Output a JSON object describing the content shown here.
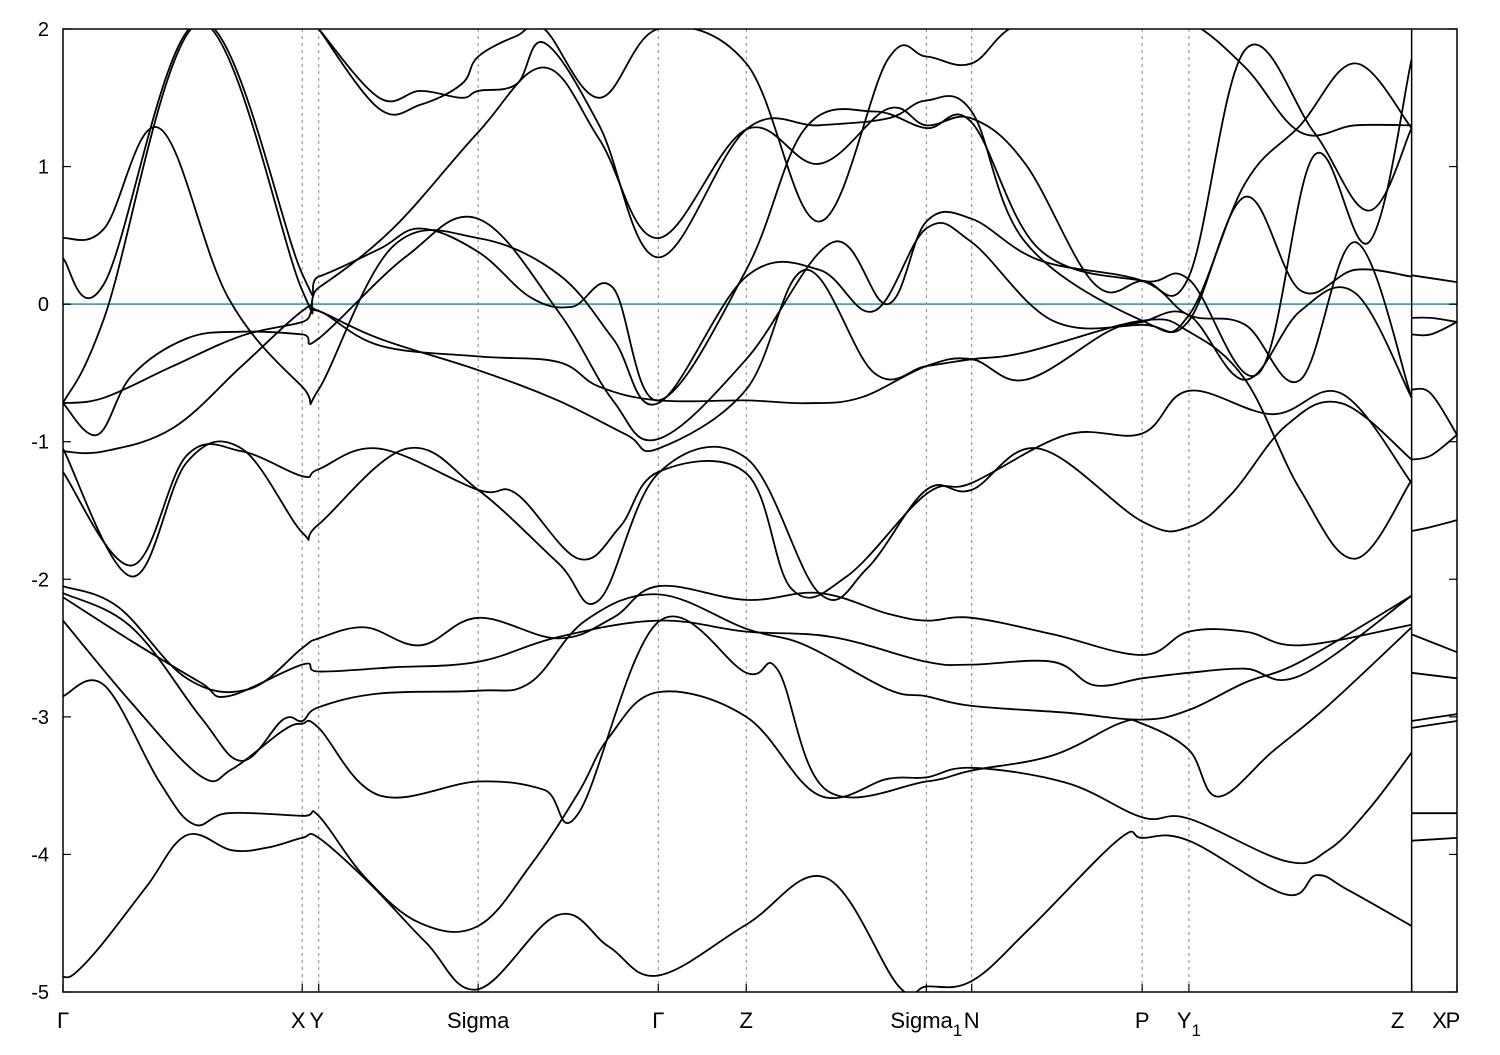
{
  "chart_data": {
    "type": "line",
    "title": "",
    "xlabel": "",
    "ylabel": "",
    "ylim": [
      -5,
      2
    ],
    "yticks": [
      2,
      1,
      0,
      -1,
      -2,
      -3,
      -4,
      -5
    ],
    "ytick_labels": [
      "2",
      "1",
      "0",
      "-1",
      "-2",
      "-3",
      "-4",
      "-5"
    ],
    "fermi_level": 0,
    "grid": false,
    "colors": {
      "bands": "#000000",
      "fermi_line": "#3aa6bf",
      "k_lines": "#888888"
    },
    "kpoints": [
      {
        "label": "Γ",
        "sub": "",
        "x": 0.0
      },
      {
        "label": "X",
        "sub": "",
        "x": 1.74
      },
      {
        "label": "Y",
        "sub": "",
        "x": 1.86
      },
      {
        "label": "Sigma",
        "sub": "",
        "x": 3.02
      },
      {
        "label": "Γ",
        "sub": "",
        "x": 4.33
      },
      {
        "label": "Z",
        "sub": "",
        "x": 4.97
      },
      {
        "label": "Sigma",
        "sub": "1",
        "x": 6.28
      },
      {
        "label": "N",
        "sub": "",
        "x": 6.61
      },
      {
        "label": "P",
        "sub": "",
        "x": 7.85
      },
      {
        "label": "Y",
        "sub": "1",
        "x": 8.19
      },
      {
        "label": "Z",
        "sub": "",
        "x": 9.81
      },
      {
        "label": "X",
        "sub": "",
        "x": 9.81
      },
      {
        "label": "P",
        "sub": "",
        "x": 10.14
      }
    ],
    "xlim": [
      0,
      10.14
    ],
    "series": [
      {
        "x": [
          0,
          0.08,
          0.27,
          0.61,
          0.9,
          1.23,
          1.49,
          1.74,
          1.86,
          2.23,
          2.64,
          3.02,
          3.6,
          3.97,
          4.33,
          4.97,
          5.55,
          6.08,
          6.28,
          6.61,
          7.03,
          7.68,
          7.85,
          8.19,
          8.89,
          9.12,
          9.35,
          9.81
        ],
        "y": [
          -4.89,
          -4.87,
          -4.67,
          -4.23,
          -3.86,
          -3.97,
          -3.95,
          -3.88,
          -3.88,
          -4.21,
          -4.64,
          -4.98,
          -4.44,
          -4.67,
          -4.88,
          -4.51,
          -4.17,
          -4.96,
          -4.96,
          -4.92,
          -4.54,
          -3.89,
          -3.88,
          -3.9,
          -4.29,
          -4.15,
          -4.26,
          -4.52
        ]
      },
      {
        "x": [
          0,
          0.3,
          0.7,
          0.95,
          1.2,
          1.74,
          1.86,
          2.2,
          2.6,
          3.02,
          3.4,
          3.75,
          3.97,
          4.33,
          4.97,
          5.5,
          6.0,
          6.28,
          6.61,
          7.3,
          7.85,
          8.19,
          8.9,
          9.2,
          9.5,
          9.81
        ],
        "y": [
          -2.85,
          -2.77,
          -3.47,
          -3.78,
          -3.7,
          -3.72,
          -3.72,
          -4.17,
          -4.5,
          -4.52,
          -4.08,
          -3.55,
          -3.15,
          -2.82,
          -3.0,
          -3.57,
          -3.45,
          -3.44,
          -3.37,
          -3.48,
          -3.73,
          -3.74,
          -4.05,
          -3.97,
          -3.67,
          -3.26
        ]
      },
      {
        "x": [
          0,
          0.5,
          1.0,
          1.23,
          1.6,
          1.74,
          1.86,
          2.3,
          3.02,
          3.5,
          3.75,
          4.33,
          4.97,
          5.2,
          5.55,
          6.28,
          6.61,
          7.2,
          7.68,
          7.85,
          8.19,
          8.4,
          8.8,
          9.2,
          9.81
        ],
        "y": [
          -2.3,
          -2.9,
          -3.43,
          -3.38,
          -3.1,
          -3.05,
          -3.08,
          -3.57,
          -3.47,
          -3.53,
          -3.7,
          -2.31,
          -2.68,
          -2.66,
          -3.53,
          -3.47,
          -3.39,
          -3.28,
          -3.05,
          -3.05,
          -3.24,
          -3.58,
          -3.25,
          -2.92,
          -2.35
        ]
      },
      {
        "x": [
          0,
          0.5,
          1.0,
          1.3,
          1.6,
          1.74,
          1.86,
          2.3,
          3.02,
          3.4,
          3.8,
          4.33,
          4.97,
          5.4,
          6.0,
          6.28,
          6.61,
          7.3,
          7.85,
          8.19,
          8.6,
          9.0,
          9.81
        ],
        "y": [
          -2.1,
          -2.35,
          -3.0,
          -3.32,
          -3.02,
          -3.03,
          -2.93,
          -2.83,
          -2.81,
          -2.75,
          -2.3,
          -2.11,
          -2.36,
          -2.48,
          -2.8,
          -2.85,
          -2.92,
          -2.97,
          -3.02,
          -2.95,
          -2.75,
          -2.6,
          -2.12
        ]
      },
      {
        "x": [
          0,
          0.4,
          0.9,
          1.35,
          1.74,
          1.86,
          2.2,
          2.6,
          3.02,
          3.6,
          4.0,
          4.33,
          4.97,
          5.5,
          6.0,
          6.28,
          6.61,
          7.2,
          7.85,
          8.19,
          8.6,
          9.0,
          9.81
        ],
        "y": [
          -2.05,
          -2.2,
          -2.72,
          -2.8,
          -2.5,
          -2.43,
          -2.35,
          -2.48,
          -2.28,
          -2.43,
          -2.28,
          -2.05,
          -2.15,
          -2.1,
          -2.25,
          -2.3,
          -2.28,
          -2.4,
          -2.55,
          -2.38,
          -2.38,
          -2.48,
          -2.33
        ]
      },
      {
        "x": [
          0,
          0.5,
          1.0,
          1.2,
          1.74,
          1.86,
          2.4,
          3.02,
          3.6,
          4.33,
          4.97,
          5.6,
          6.28,
          6.61,
          7.2,
          7.5,
          7.85,
          8.19,
          8.6,
          9.0,
          9.81
        ],
        "y": [
          -2.13,
          -2.45,
          -2.75,
          -2.85,
          -2.62,
          -2.67,
          -2.64,
          -2.6,
          -2.42,
          -2.3,
          -2.38,
          -2.42,
          -2.6,
          -2.62,
          -2.6,
          -2.77,
          -2.72,
          -2.68,
          -2.65,
          -2.7,
          -2.12
        ]
      },
      {
        "x": [
          0,
          0.5,
          0.9,
          1.3,
          1.74,
          1.86,
          2.3,
          3.02,
          3.3,
          3.75,
          4.05,
          4.33,
          4.97,
          5.3,
          5.7,
          6.28,
          6.61,
          7.3,
          7.85,
          8.19,
          8.8,
          9.3,
          9.81
        ],
        "y": [
          -1.22,
          -1.9,
          -1.1,
          -1.07,
          -1.25,
          -1.2,
          -1.05,
          -1.35,
          -1.38,
          -1.85,
          -1.62,
          -1.22,
          -1.23,
          -2.07,
          -1.98,
          -1.38,
          -1.3,
          -0.95,
          -0.94,
          -0.63,
          -0.8,
          -0.65,
          -1.3
        ]
      },
      {
        "x": [
          0,
          0.5,
          0.9,
          1.3,
          1.74,
          1.86,
          2.5,
          3.02,
          3.6,
          3.9,
          4.33,
          4.97,
          5.5,
          5.85,
          6.28,
          6.61,
          7.1,
          7.85,
          8.19,
          8.5,
          8.9,
          9.3,
          9.81
        ],
        "y": [
          -1.05,
          -1.98,
          -1.15,
          -1.05,
          -1.66,
          -1.6,
          -1.05,
          -1.35,
          -1.88,
          -2.15,
          -1.23,
          -1.12,
          -2.1,
          -1.92,
          -1.35,
          -1.35,
          -1.05,
          -1.58,
          -1.62,
          -1.38,
          -0.88,
          -0.72,
          -1.13
        ]
      },
      {
        "x": [
          0,
          0.3,
          0.8,
          1.3,
          1.74,
          1.86,
          2.3,
          3.02,
          3.6,
          4.1,
          4.33,
          4.97,
          5.4,
          5.9,
          6.28,
          6.61,
          7.0,
          7.85,
          8.19,
          8.6,
          9.0,
          9.4,
          9.81
        ],
        "y": [
          -1.07,
          -1.07,
          -0.9,
          -0.45,
          -0.05,
          -0.05,
          -0.25,
          -0.48,
          -0.7,
          -0.95,
          -1.05,
          -0.62,
          0.25,
          -0.5,
          -0.45,
          -0.4,
          -0.35,
          -0.12,
          -0.2,
          -0.55,
          -1.35,
          -1.85,
          -1.28
        ]
      },
      {
        "x": [
          0,
          0.3,
          0.8,
          1.3,
          1.74,
          1.86,
          2.3,
          3.02,
          3.6,
          3.9,
          4.33,
          4.97,
          5.4,
          5.8,
          6.28,
          6.61,
          7.0,
          7.6,
          7.85,
          8.19,
          8.6,
          9.0,
          9.4,
          9.81
        ],
        "y": [
          -0.72,
          -0.68,
          -0.45,
          -0.23,
          -0.13,
          -0.05,
          -0.3,
          -0.38,
          -0.42,
          -0.6,
          -0.7,
          -0.7,
          -0.72,
          -0.68,
          -0.45,
          -0.4,
          -0.55,
          -0.2,
          -0.13,
          -0.08,
          -0.55,
          -0.05,
          0.08,
          -0.68
        ]
      },
      {
        "x": [
          0,
          0.25,
          0.5,
          0.9,
          1.3,
          1.74,
          1.86,
          2.5,
          3.02,
          3.6,
          4.0,
          4.33,
          4.97,
          5.6,
          6.0,
          6.28,
          6.61,
          7.1,
          7.85,
          8.19,
          8.6,
          9.0,
          9.4,
          9.81
        ],
        "y": [
          -0.72,
          -0.95,
          -0.52,
          -0.25,
          -0.2,
          -0.22,
          -0.25,
          0.35,
          0.62,
          -0.05,
          -0.7,
          -0.98,
          -0.4,
          0.45,
          0.0,
          0.6,
          0.62,
          0.32,
          0.17,
          -0.08,
          -0.15,
          -0.55,
          0.45,
          -0.68
        ]
      },
      {
        "x": [
          0,
          0.3,
          0.7,
          1.2,
          1.74,
          1.86,
          2.4,
          3.02,
          3.6,
          4.0,
          4.33,
          4.97,
          5.5,
          5.9,
          6.28,
          6.61,
          7.2,
          7.85,
          8.19,
          8.6,
          9.0,
          9.4,
          9.81
        ],
        "y": [
          0.48,
          0.55,
          1.28,
          0.05,
          -0.6,
          -0.62,
          0.42,
          0.48,
          0.22,
          -0.25,
          -0.72,
          0.2,
          0.25,
          -0.05,
          0.55,
          0.45,
          -0.12,
          -0.15,
          -0.12,
          0.78,
          0.1,
          0.25,
          0.2
        ]
      },
      {
        "x": [
          0,
          0.3,
          1.0,
          1.74,
          1.86,
          2.4,
          3.02,
          3.5,
          3.9,
          4.33,
          4.97,
          5.5,
          6.0,
          6.28,
          6.61,
          7.0,
          7.5,
          7.85,
          8.19,
          8.6,
          9.1,
          9.5,
          9.81
        ],
        "y": [
          0.33,
          0.15,
          2.05,
          0.1,
          0.12,
          0.55,
          1.25,
          1.72,
          1.2,
          0.48,
          1.27,
          1.02,
          1.42,
          1.3,
          1.35,
          1.02,
          0.15,
          0.17,
          0.2,
          1.85,
          1.25,
          0.68,
          1.28
        ]
      },
      {
        "x": [
          0,
          0.3,
          1.0,
          1.74,
          1.86,
          2.3,
          2.6,
          3.02,
          3.4,
          3.7,
          4.0,
          4.33,
          4.97,
          5.4,
          5.9,
          6.28,
          6.61,
          7.1,
          7.85,
          8.19,
          8.7,
          9.1,
          9.5,
          9.81
        ],
        "y": [
          -0.72,
          -0.1,
          2.05,
          0.22,
          0.2,
          0.4,
          0.55,
          0.38,
          0.05,
          -0.02,
          0.12,
          -0.7,
          0.25,
          1.28,
          1.4,
          1.28,
          1.32,
          0.4,
          0.17,
          0.18,
          -0.5,
          1.08,
          0.45,
          1.78
        ]
      },
      {
        "x": [
          1.86,
          2.3,
          2.6,
          2.9,
          3.02,
          3.3,
          3.5,
          3.9,
          4.33,
          4.97,
          5.5,
          6.0,
          6.28,
          6.61,
          7.0,
          7.85,
          8.19,
          8.6,
          9.0,
          9.4,
          9.81
        ],
        "y": [
          2.0,
          1.5,
          1.55,
          1.5,
          1.55,
          1.6,
          1.9,
          1.3,
          0.34,
          1.27,
          1.3,
          1.35,
          1.48,
          1.4,
          0.45,
          -0.12,
          -0.08,
          0.88,
          1.3,
          1.75,
          1.28
        ]
      },
      {
        "x": [
          1.86,
          2.3,
          2.6,
          2.9,
          3.02,
          3.3,
          3.5,
          3.9,
          4.33,
          4.97,
          5.5,
          6.0,
          6.28,
          6.61,
          7.0,
          7.85,
          8.19,
          8.6,
          9.0,
          9.4,
          9.81
        ],
        "y": [
          2.0,
          1.42,
          1.45,
          1.6,
          1.8,
          1.95,
          2.0,
          1.5,
          2.0,
          1.75,
          0.6,
          1.78,
          1.8,
          1.75,
          2.05,
          2.05,
          2.05,
          1.72,
          1.25,
          1.3,
          1.3
        ]
      },
      {
        "x": [
          9.81,
          9.95,
          10.14
        ],
        "y": [
          -0.1,
          -0.1,
          -0.13
        ]
      },
      {
        "x": [
          9.81,
          9.95,
          10.14
        ],
        "y": [
          -0.22,
          -0.22,
          -0.13
        ]
      },
      {
        "x": [
          9.81,
          10.14
        ],
        "y": [
          0.21,
          0.16
        ]
      },
      {
        "x": [
          9.81,
          9.95,
          10.14
        ],
        "y": [
          -0.62,
          -0.65,
          -0.95
        ]
      },
      {
        "x": [
          9.81,
          9.95,
          10.14
        ],
        "y": [
          -1.65,
          -1.62,
          -1.57
        ]
      },
      {
        "x": [
          9.81,
          9.95,
          10.14
        ],
        "y": [
          -1.13,
          -1.1,
          -0.95
        ]
      },
      {
        "x": [
          9.81,
          10.14
        ],
        "y": [
          -2.4,
          -2.53
        ]
      },
      {
        "x": [
          9.81,
          10.14
        ],
        "y": [
          -2.68,
          -2.72
        ]
      },
      {
        "x": [
          9.81,
          10.14
        ],
        "y": [
          -3.03,
          -2.98
        ]
      },
      {
        "x": [
          9.81,
          10.14
        ],
        "y": [
          -3.08,
          -3.03
        ]
      },
      {
        "x": [
          9.81,
          10.14
        ],
        "y": [
          -3.7,
          -3.7
        ]
      },
      {
        "x": [
          9.81,
          10.14
        ],
        "y": [
          -3.9,
          -3.88
        ]
      }
    ]
  }
}
